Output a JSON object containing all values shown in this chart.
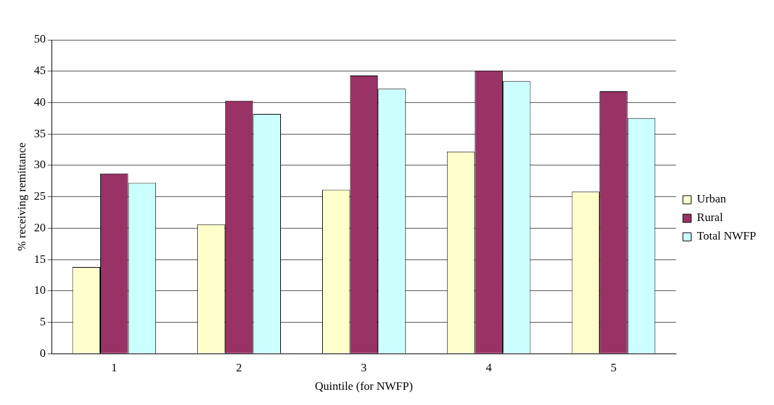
{
  "chart_data": {
    "type": "bar",
    "xlabel": "Quintile (for NWFP)",
    "ylabel": "% receiving remittance",
    "categories": [
      "1",
      "2",
      "3",
      "4",
      "5"
    ],
    "series": [
      {
        "name": "Urban",
        "color": "#ffffcc",
        "values": [
          13.8,
          20.6,
          26.1,
          32.2,
          25.8
        ]
      },
      {
        "name": "Rural",
        "color": "#993366",
        "values": [
          28.7,
          40.3,
          44.3,
          45.1,
          41.8
        ]
      },
      {
        "name": "Total NWFP",
        "color": "#ccffff",
        "values": [
          27.2,
          38.2,
          42.2,
          43.4,
          37.5
        ]
      }
    ],
    "ylim": [
      0,
      50
    ],
    "yticks": [
      0,
      5,
      10,
      15,
      20,
      25,
      30,
      35,
      40,
      45,
      50
    ],
    "grid": "y",
    "legend": "right"
  }
}
